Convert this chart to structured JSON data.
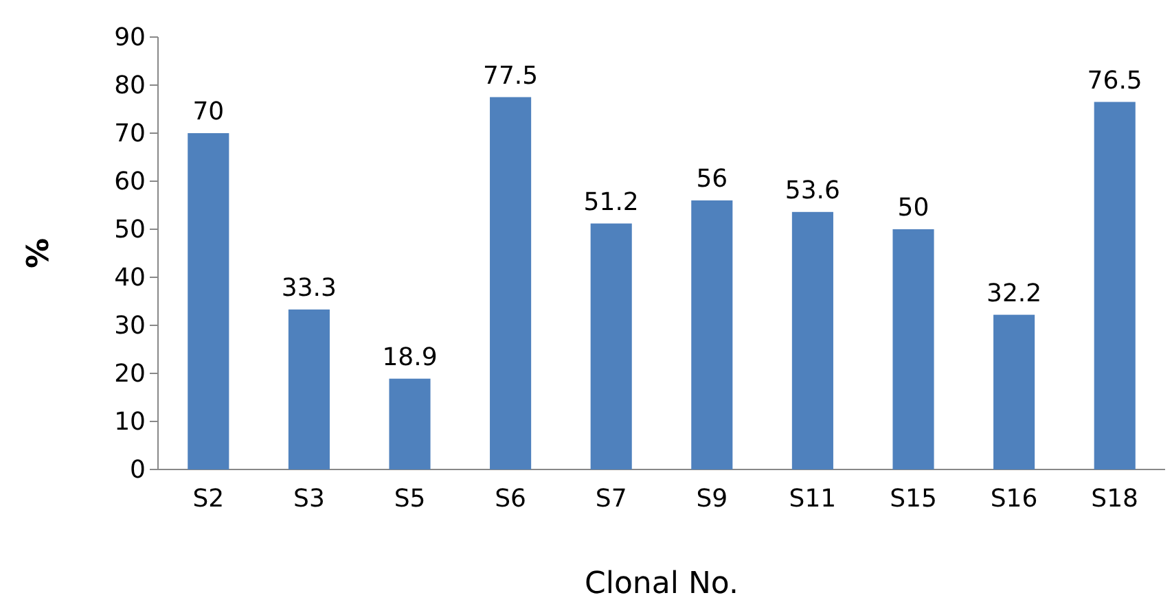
{
  "chart_data": {
    "type": "bar",
    "xlabel": "Clonal No.",
    "ylabel": "%",
    "categories": [
      "S2",
      "S3",
      "S5",
      "S6",
      "S7",
      "S9",
      "S11",
      "S15",
      "S16",
      "S18"
    ],
    "values": [
      70,
      33.3,
      18.9,
      77.5,
      51.2,
      56,
      53.6,
      50,
      32.2,
      76.5
    ],
    "color": "#4f81bd",
    "ylim": [
      0,
      90
    ],
    "yticks": [
      0,
      10,
      20,
      30,
      40,
      50,
      60,
      70,
      80,
      90
    ],
    "data_labels": true,
    "grid": false
  }
}
